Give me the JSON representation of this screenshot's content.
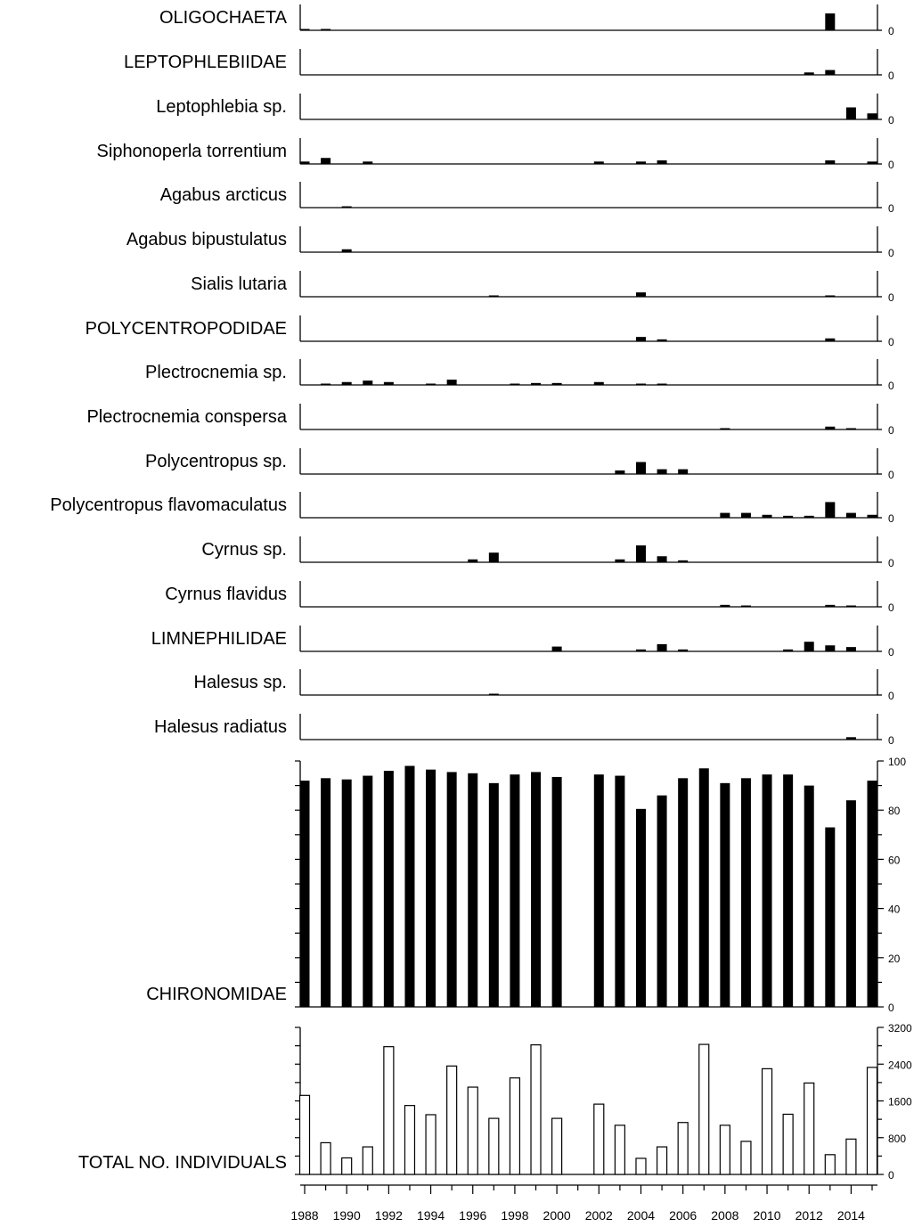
{
  "chart_data": {
    "type": "bar",
    "x": [
      1988,
      1989,
      1990,
      1991,
      1992,
      1993,
      1994,
      1995,
      1996,
      1997,
      1998,
      1999,
      2000,
      2001,
      2002,
      2003,
      2004,
      2005,
      2006,
      2007,
      2008,
      2009,
      2010,
      2011,
      2012,
      2013,
      2014,
      2015
    ],
    "x_tick_labels": [
      "1988",
      "1990",
      "1992",
      "1994",
      "1996",
      "1998",
      "2000",
      "2002",
      "2004",
      "2006",
      "2008",
      "2010",
      "2012",
      "2014"
    ],
    "bar_color": "#000000",
    "total_bar_fill": "#ffffff",
    "small_panel_ylim": [
      0,
      100
    ],
    "small_panel_tick_label": "0",
    "small_panels": [
      {
        "name": "OLIGOCHAETA",
        "values": [
          0.5,
          0.5,
          0,
          0,
          0,
          0,
          0,
          0,
          0,
          0,
          0,
          0,
          0,
          0,
          0,
          0,
          0,
          0,
          0,
          0,
          0,
          0,
          0,
          0,
          0,
          7,
          0,
          0
        ]
      },
      {
        "name": "LEPTOPHLEBIIDAE",
        "values": [
          0,
          0,
          0,
          0,
          0,
          0,
          0,
          0,
          0,
          0,
          0,
          0,
          0,
          0,
          0,
          0,
          0,
          0,
          0,
          0,
          0,
          0,
          0,
          0,
          1,
          2,
          0,
          0
        ]
      },
      {
        "name": "Leptophlebia sp.",
        "values": [
          0,
          0,
          0,
          0,
          0,
          0,
          0,
          0,
          0,
          0,
          0,
          0,
          0,
          0,
          0,
          0,
          0,
          0,
          0,
          0,
          0,
          0,
          0,
          0,
          0,
          0,
          5,
          2.5
        ]
      },
      {
        "name": "Siphonoperla torrentium",
        "values": [
          1,
          2.5,
          0,
          1,
          0,
          0,
          0,
          0,
          0,
          0,
          0,
          0,
          0,
          0,
          1,
          0,
          1,
          1.5,
          0,
          0,
          0,
          0,
          0,
          0,
          0,
          1.5,
          0,
          1
        ]
      },
      {
        "name": "Agabus arcticus",
        "values": [
          0,
          0,
          0.5,
          0,
          0,
          0,
          0,
          0,
          0,
          0,
          0,
          0,
          0,
          0,
          0,
          0,
          0,
          0,
          0,
          0,
          0,
          0,
          0,
          0,
          0,
          0,
          0,
          0
        ]
      },
      {
        "name": "Agabus bipustulatus",
        "values": [
          0,
          0,
          1.2,
          0,
          0,
          0,
          0,
          0,
          0,
          0,
          0,
          0,
          0,
          0,
          0,
          0,
          0,
          0,
          0,
          0,
          0,
          0,
          0,
          0,
          0,
          0,
          0,
          0
        ]
      },
      {
        "name": "Sialis lutaria",
        "values": [
          0,
          0,
          0,
          0,
          0,
          0,
          0,
          0,
          0,
          0.5,
          0,
          0,
          0,
          0,
          0,
          0,
          1.8,
          0,
          0,
          0,
          0,
          0,
          0,
          0,
          0,
          0.5,
          0,
          0
        ]
      },
      {
        "name": "POLYCENTROPODIDAE",
        "values": [
          0,
          0,
          0,
          0,
          0,
          0,
          0,
          0,
          0,
          0,
          0,
          0,
          0,
          0,
          0,
          0,
          1.8,
          0.8,
          0,
          0,
          0,
          0,
          0,
          0,
          0,
          1.2,
          0,
          0
        ]
      },
      {
        "name": "Plectrocnemia sp.",
        "values": [
          0,
          0.5,
          1.2,
          1.8,
          1.2,
          0,
          0.5,
          2.2,
          0,
          0,
          0.5,
          0.8,
          0.8,
          0,
          1.2,
          0,
          0.5,
          0.5,
          0,
          0,
          0,
          0,
          0,
          0,
          0,
          0,
          0,
          0
        ]
      },
      {
        "name": "Plectrocnemia conspersa",
        "values": [
          0,
          0,
          0,
          0,
          0,
          0,
          0,
          0,
          0,
          0,
          0,
          0,
          0,
          0,
          0,
          0,
          0,
          0,
          0,
          0,
          0.5,
          0,
          0,
          0,
          0,
          1.2,
          0.5,
          0
        ]
      },
      {
        "name": "Polycentropus sp.",
        "values": [
          0,
          0,
          0,
          0,
          0,
          0,
          0,
          0,
          0,
          0,
          0,
          0,
          0,
          0,
          0,
          1.5,
          5,
          2,
          2,
          0,
          0,
          0,
          0,
          0,
          0,
          0,
          0,
          0
        ]
      },
      {
        "name": "Polycentropus flavomaculatus",
        "values": [
          0,
          0,
          0,
          0,
          0,
          0,
          0,
          0,
          0,
          0,
          0,
          0,
          0,
          0,
          0,
          0,
          0,
          0,
          0,
          0,
          2,
          2,
          1.2,
          0.8,
          0.8,
          6.5,
          2,
          1.2
        ]
      },
      {
        "name": "Cyrnus sp.",
        "values": [
          0,
          0,
          0,
          0,
          0,
          0,
          0,
          0,
          1.2,
          4,
          0,
          0,
          0,
          0,
          0,
          1.2,
          7,
          2.5,
          0.8,
          0,
          0,
          0,
          0,
          0,
          0,
          0,
          0,
          0
        ]
      },
      {
        "name": "Cyrnus flavidus",
        "values": [
          0,
          0,
          0,
          0,
          0,
          0,
          0,
          0,
          0,
          0,
          0,
          0,
          0,
          0,
          0,
          0,
          0,
          0,
          0,
          0,
          0.8,
          0.5,
          0,
          0,
          0,
          0.8,
          0.5,
          0
        ]
      },
      {
        "name": "LIMNEPHILIDAE",
        "values": [
          0,
          0,
          0,
          0,
          0,
          0,
          0,
          0,
          0,
          0,
          0,
          0,
          2,
          0,
          0,
          0,
          0.8,
          3,
          0.8,
          0,
          0,
          0,
          0,
          0.8,
          4,
          2.5,
          1.8,
          0
        ]
      },
      {
        "name": "Halesus sp.",
        "values": [
          0,
          0,
          0,
          0,
          0,
          0,
          0,
          0,
          0,
          0.5,
          0,
          0,
          0,
          0,
          0,
          0,
          0,
          0,
          0,
          0,
          0,
          0,
          0,
          0,
          0,
          0,
          0,
          0
        ]
      },
      {
        "name": "Halesus radiatus",
        "values": [
          0,
          0,
          0,
          0,
          0,
          0,
          0,
          0,
          0,
          0,
          0,
          0,
          0,
          0,
          0,
          0,
          0,
          0,
          0,
          0,
          0,
          0,
          0,
          0,
          0,
          0,
          1,
          0
        ]
      }
    ],
    "chironomidae": {
      "name": "CHIRONOMIDAE",
      "ylim": [
        0,
        100
      ],
      "ticks": [
        0,
        20,
        40,
        60,
        80,
        100
      ],
      "tick_labels": [
        "0",
        "20",
        "40",
        "60",
        "80",
        "100"
      ],
      "values": [
        92,
        93,
        92.5,
        94,
        96,
        98,
        96.5,
        95.5,
        95,
        91,
        94.5,
        95.5,
        93.5,
        null,
        94.5,
        94,
        80.5,
        86,
        93,
        97,
        91,
        93,
        94.5,
        94.5,
        90,
        73,
        84,
        92
      ]
    },
    "total_individuals": {
      "name": "TOTAL NO. INDIVIDUALS",
      "ylim": [
        0,
        3200
      ],
      "ticks": [
        0,
        800,
        1600,
        2400,
        3200
      ],
      "tick_labels": [
        "0",
        "800",
        "1600",
        "2400",
        "3200"
      ],
      "values": [
        1720,
        690,
        360,
        600,
        2780,
        1500,
        1300,
        2360,
        1900,
        1220,
        2100,
        2820,
        1220,
        null,
        1530,
        1070,
        350,
        600,
        1130,
        2830,
        1070,
        720,
        2300,
        1310,
        1990,
        430,
        770,
        2330
      ]
    }
  }
}
